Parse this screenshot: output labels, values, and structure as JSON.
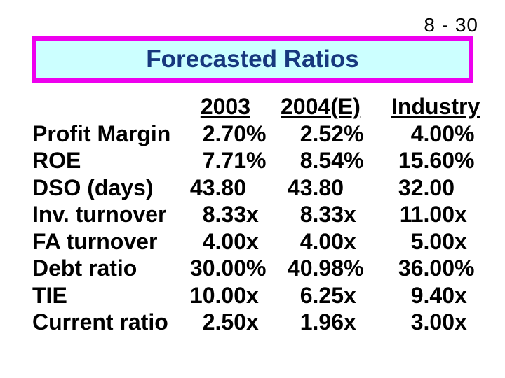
{
  "page_number": "8 - 30",
  "title": "Forecasted Ratios",
  "colors": {
    "title_text": "#17387E",
    "title_box_border": "#EE00EE",
    "title_box_background": "#CCFFFF",
    "body_text": "#000000",
    "page_background": "#FFFFFF"
  },
  "table": {
    "headers": [
      "2003",
      "2004(E)",
      "Industry"
    ],
    "rows": [
      {
        "label": "Profit Margin",
        "c1": {
          "n": "2.70",
          "s": "%"
        },
        "c2": {
          "n": "2.52",
          "s": "%"
        },
        "c3": {
          "n": "4.00",
          "s": "%"
        }
      },
      {
        "label": "ROE",
        "c1": {
          "n": "7.71",
          "s": "%"
        },
        "c2": {
          "n": "8.54",
          "s": "%"
        },
        "c3": {
          "n": "15.60",
          "s": "%"
        }
      },
      {
        "label": "DSO (days)",
        "c1": {
          "n": "43.80",
          "s": ""
        },
        "c2": {
          "n": "43.80",
          "s": ""
        },
        "c3": {
          "n": "32.00",
          "s": ""
        }
      },
      {
        "label": "Inv. turnover",
        "c1": {
          "n": "8.33",
          "s": "x"
        },
        "c2": {
          "n": "8.33",
          "s": "x"
        },
        "c3": {
          "n": "11.00",
          "s": "x"
        }
      },
      {
        "label": "FA turnover",
        "c1": {
          "n": "4.00",
          "s": "x"
        },
        "c2": {
          "n": "4.00",
          "s": "x"
        },
        "c3": {
          "n": "5.00",
          "s": "x"
        }
      },
      {
        "label": "Debt ratio",
        "c1": {
          "n": "30.00",
          "s": "%"
        },
        "c2": {
          "n": "40.98",
          "s": "%"
        },
        "c3": {
          "n": "36.00",
          "s": "%"
        }
      },
      {
        "label": "TIE",
        "c1": {
          "n": "10.00",
          "s": "x"
        },
        "c2": {
          "n": "6.25",
          "s": "x"
        },
        "c3": {
          "n": "9.40",
          "s": "x"
        }
      },
      {
        "label": "Current ratio",
        "c1": {
          "n": "2.50",
          "s": "x"
        },
        "c2": {
          "n": "1.96",
          "s": "x"
        },
        "c3": {
          "n": "3.00",
          "s": "x"
        }
      }
    ]
  },
  "chart_data": {
    "type": "table",
    "title": "Forecasted Ratios",
    "categories": [
      "Profit Margin",
      "ROE",
      "DSO (days)",
      "Inv. turnover",
      "FA turnover",
      "Debt ratio",
      "TIE",
      "Current ratio"
    ],
    "series": [
      {
        "name": "2003",
        "values": [
          "2.70%",
          "7.71%",
          "43.80",
          "8.33x",
          "4.00x",
          "30.00%",
          "10.00x",
          "2.50x"
        ]
      },
      {
        "name": "2004(E)",
        "values": [
          "2.52%",
          "8.54%",
          "43.80",
          "8.33x",
          "4.00x",
          "40.98%",
          "6.25x",
          "1.96x"
        ]
      },
      {
        "name": "Industry",
        "values": [
          "4.00%",
          "15.60%",
          "32.00",
          "11.00x",
          "5.00x",
          "36.00%",
          "9.40x",
          "3.00x"
        ]
      }
    ]
  }
}
